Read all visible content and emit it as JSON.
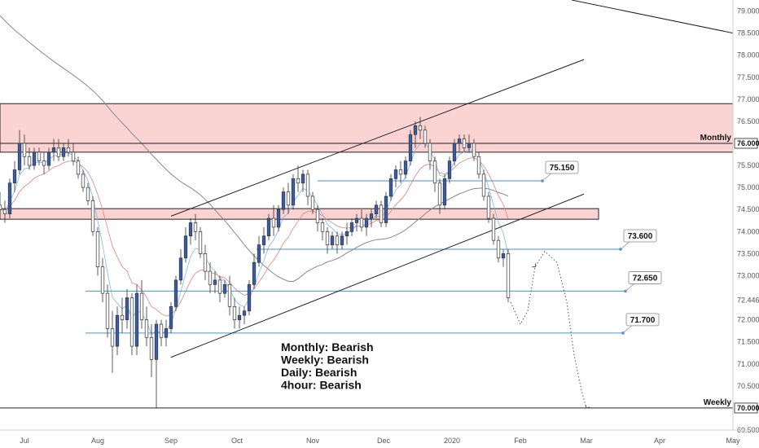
{
  "chart_data": {
    "type": "candlestick",
    "y_range": [
      69.5,
      79.25
    ],
    "x_range": [
      0,
      300
    ],
    "price_ticks": [
      "79.000",
      "78.500",
      "78.000",
      "77.500",
      "77.000",
      "76.500",
      "76.000",
      "75.500",
      "75.000",
      "74.500",
      "74.000",
      "73.500",
      "73.000",
      "72.446",
      "72.000",
      "71.500",
      "71.000",
      "70.500",
      "70.000",
      "69.500"
    ],
    "price_tick_values": [
      79.0,
      78.5,
      78.0,
      77.5,
      77.0,
      76.5,
      76.0,
      75.5,
      75.0,
      74.5,
      74.0,
      73.5,
      73.0,
      72.446,
      72.0,
      71.5,
      71.0,
      70.5,
      70.0,
      69.5
    ],
    "highlighted_ticks": {
      "76.000": "Monthly",
      "72.446": "current",
      "70.000": "Weekly"
    },
    "date_ticks": [
      {
        "label": "Jul",
        "x": 10
      },
      {
        "label": "Aug",
        "x": 40
      },
      {
        "label": "Sep",
        "x": 70
      },
      {
        "label": "Oct",
        "x": 97
      },
      {
        "label": "Nov",
        "x": 128
      },
      {
        "label": "Dec",
        "x": 157
      },
      {
        "label": "2020",
        "x": 185
      },
      {
        "label": "Feb",
        "x": 213
      },
      {
        "label": "Mar",
        "x": 240
      },
      {
        "label": "Apr",
        "x": 270
      },
      {
        "label": "May",
        "x": 300
      }
    ],
    "zones": [
      {
        "name": "Monthly",
        "low": 75.8,
        "high": 76.9,
        "x0": 0,
        "x1": 300,
        "color": "#f8b4b4"
      },
      {
        "name": "",
        "low": 74.28,
        "high": 74.52,
        "x0": 0,
        "x1": 245,
        "color": "#f8b4b4"
      }
    ],
    "levels": [
      {
        "value": 75.15,
        "x0": 130,
        "x1": 222,
        "label": "75.150",
        "color": "#4a90d9"
      },
      {
        "value": 73.6,
        "x0": 105,
        "x1": 254,
        "label": "73.600",
        "color": "#4a90d9"
      },
      {
        "value": 72.65,
        "x0": 35,
        "x1": 256,
        "label": "72.650",
        "color": "#4a90d9"
      },
      {
        "value": 71.7,
        "x0": 35,
        "x1": 255,
        "label": "71.700",
        "color": "#4a90d9"
      },
      {
        "value": 76.0,
        "x0": 0,
        "x1": 300,
        "label": "Monthly",
        "color": "#222222"
      },
      {
        "value": 70.0,
        "x0": 0,
        "x1": 300,
        "label": "Weekly",
        "color": "#222222"
      }
    ],
    "trendlines": [
      {
        "p1": [
          70,
          74.35
        ],
        "p2": [
          239,
          77.9
        ]
      },
      {
        "p1": [
          70,
          71.15
        ],
        "p2": [
          239,
          74.85
        ]
      },
      {
        "p1": [
          234,
          79.25
        ],
        "p2": [
          300,
          78.5
        ]
      }
    ],
    "candles": [
      [
        0,
        74.6,
        74.9,
        74.3,
        74.5
      ],
      [
        2,
        74.5,
        74.7,
        74.2,
        74.4
      ],
      [
        4,
        74.4,
        75.2,
        74.3,
        75.1
      ],
      [
        6,
        75.1,
        75.6,
        74.9,
        75.4
      ],
      [
        8,
        75.4,
        76.3,
        75.3,
        76.0
      ],
      [
        10,
        76.0,
        76.2,
        75.5,
        75.7
      ],
      [
        12,
        75.7,
        75.9,
        75.4,
        75.5
      ],
      [
        14,
        75.5,
        75.9,
        75.4,
        75.8
      ],
      [
        16,
        75.8,
        75.9,
        75.5,
        75.6
      ],
      [
        18,
        75.6,
        75.8,
        75.3,
        75.5
      ],
      [
        20,
        75.5,
        75.9,
        75.4,
        75.8
      ],
      [
        22,
        75.8,
        76.1,
        75.6,
        75.9
      ],
      [
        24,
        75.9,
        76.1,
        75.6,
        75.7
      ],
      [
        26,
        75.7,
        76.0,
        75.6,
        75.9
      ],
      [
        28,
        75.9,
        76.1,
        75.7,
        75.8
      ],
      [
        30,
        75.8,
        76.0,
        75.5,
        75.6
      ],
      [
        32,
        75.6,
        75.7,
        75.2,
        75.3
      ],
      [
        34,
        75.3,
        75.4,
        74.9,
        75.0
      ],
      [
        36,
        75.0,
        75.1,
        74.6,
        74.7
      ],
      [
        38,
        74.7,
        74.8,
        73.9,
        74.0
      ],
      [
        40,
        74.0,
        74.1,
        73.0,
        73.2
      ],
      [
        42,
        73.2,
        73.4,
        72.4,
        72.6
      ],
      [
        44,
        72.6,
        72.8,
        71.6,
        71.8
      ],
      [
        46,
        71.8,
        72.2,
        70.8,
        71.4
      ],
      [
        48,
        71.4,
        72.3,
        71.2,
        72.1
      ],
      [
        50,
        72.1,
        72.5,
        71.7,
        72.0
      ],
      [
        52,
        72.0,
        72.7,
        71.8,
        72.5
      ],
      [
        54,
        72.5,
        72.6,
        71.2,
        71.4
      ],
      [
        56,
        71.4,
        72.8,
        71.2,
        72.6
      ],
      [
        58,
        72.6,
        72.9,
        71.8,
        72.0
      ],
      [
        60,
        72.0,
        72.3,
        71.4,
        71.6
      ],
      [
        62,
        71.6,
        71.9,
        70.7,
        71.1
      ],
      [
        64,
        71.1,
        72.0,
        70.0,
        71.9
      ],
      [
        66,
        71.9,
        72.0,
        71.4,
        71.6
      ],
      [
        68,
        71.6,
        72.0,
        71.4,
        71.8
      ],
      [
        70,
        71.8,
        72.4,
        71.7,
        72.3
      ],
      [
        72,
        72.3,
        73.0,
        72.2,
        72.9
      ],
      [
        74,
        72.9,
        73.6,
        72.8,
        73.4
      ],
      [
        76,
        73.4,
        74.1,
        73.3,
        73.9
      ],
      [
        78,
        73.9,
        74.3,
        73.7,
        74.2
      ],
      [
        80,
        74.2,
        74.4,
        73.8,
        74.0
      ],
      [
        82,
        74.0,
        74.1,
        73.4,
        73.5
      ],
      [
        84,
        73.5,
        73.7,
        72.9,
        73.1
      ],
      [
        86,
        73.1,
        73.3,
        72.6,
        72.8
      ],
      [
        88,
        72.8,
        73.1,
        72.6,
        72.9
      ],
      [
        90,
        72.9,
        73.0,
        72.4,
        72.6
      ],
      [
        92,
        72.6,
        72.9,
        72.5,
        72.8
      ],
      [
        94,
        72.8,
        73.0,
        72.1,
        72.3
      ],
      [
        96,
        72.3,
        72.5,
        71.8,
        72.0
      ],
      [
        98,
        72.0,
        72.3,
        71.8,
        72.1
      ],
      [
        100,
        72.1,
        72.3,
        71.9,
        72.2
      ],
      [
        102,
        72.2,
        72.9,
        72.1,
        72.8
      ],
      [
        104,
        72.8,
        73.5,
        72.7,
        73.3
      ],
      [
        106,
        73.3,
        73.9,
        73.2,
        73.7
      ],
      [
        108,
        73.7,
        74.1,
        73.5,
        73.9
      ],
      [
        110,
        73.9,
        74.4,
        73.8,
        74.3
      ],
      [
        112,
        74.3,
        74.6,
        73.9,
        74.1
      ],
      [
        114,
        74.1,
        74.6,
        74.0,
        74.5
      ],
      [
        116,
        74.5,
        75.0,
        74.4,
        74.9
      ],
      [
        118,
        74.9,
        75.1,
        74.4,
        74.6
      ],
      [
        120,
        74.6,
        75.3,
        74.5,
        75.2
      ],
      [
        122,
        75.2,
        75.5,
        74.9,
        75.1
      ],
      [
        124,
        75.1,
        75.4,
        74.9,
        75.3
      ],
      [
        126,
        75.3,
        75.4,
        74.6,
        74.8
      ],
      [
        128,
        74.8,
        74.9,
        74.4,
        74.5
      ],
      [
        130,
        74.5,
        74.6,
        74.0,
        74.2
      ],
      [
        132,
        74.2,
        74.3,
        73.8,
        74.0
      ],
      [
        134,
        74.0,
        74.1,
        73.5,
        73.7
      ],
      [
        136,
        73.7,
        74.0,
        73.6,
        73.9
      ],
      [
        138,
        73.9,
        74.0,
        73.5,
        73.7
      ],
      [
        140,
        73.7,
        74.0,
        73.6,
        73.9
      ],
      [
        142,
        73.9,
        74.2,
        73.7,
        74.0
      ],
      [
        144,
        74.0,
        74.3,
        73.9,
        74.2
      ],
      [
        146,
        74.2,
        74.4,
        74.0,
        74.3
      ],
      [
        148,
        74.3,
        74.5,
        74.0,
        74.1
      ],
      [
        150,
        74.1,
        74.4,
        73.9,
        74.3
      ],
      [
        152,
        74.3,
        74.5,
        74.1,
        74.4
      ],
      [
        154,
        74.4,
        74.7,
        74.3,
        74.6
      ],
      [
        156,
        74.6,
        74.7,
        74.1,
        74.2
      ],
      [
        158,
        74.2,
        74.9,
        74.1,
        74.8
      ],
      [
        160,
        74.8,
        75.3,
        74.7,
        75.2
      ],
      [
        162,
        75.2,
        75.5,
        75.0,
        75.4
      ],
      [
        164,
        75.4,
        75.6,
        75.1,
        75.3
      ],
      [
        166,
        75.3,
        75.7,
        75.2,
        75.6
      ],
      [
        168,
        75.6,
        76.3,
        75.5,
        76.2
      ],
      [
        170,
        76.2,
        76.5,
        75.9,
        76.4
      ],
      [
        172,
        76.4,
        76.6,
        76.1,
        76.3
      ],
      [
        174,
        76.3,
        76.4,
        75.9,
        76.0
      ],
      [
        176,
        76.0,
        76.1,
        75.4,
        75.6
      ],
      [
        178,
        75.6,
        75.7,
        74.9,
        75.1
      ],
      [
        180,
        75.1,
        75.2,
        74.4,
        74.6
      ],
      [
        182,
        74.6,
        75.3,
        74.5,
        75.2
      ],
      [
        184,
        75.2,
        75.7,
        75.1,
        75.6
      ],
      [
        186,
        75.6,
        76.1,
        75.5,
        76.0
      ],
      [
        188,
        76.0,
        76.2,
        75.8,
        76.1
      ],
      [
        190,
        76.1,
        76.2,
        75.8,
        75.9
      ],
      [
        192,
        75.9,
        76.2,
        75.8,
        76.0
      ],
      [
        194,
        76.0,
        76.1,
        75.6,
        75.7
      ],
      [
        196,
        75.7,
        75.8,
        75.2,
        75.3
      ],
      [
        198,
        75.3,
        75.4,
        74.7,
        74.8
      ],
      [
        200,
        74.8,
        74.9,
        74.2,
        74.3
      ],
      [
        202,
        74.3,
        74.4,
        73.7,
        73.8
      ],
      [
        204,
        73.8,
        73.9,
        73.3,
        73.4
      ],
      [
        206,
        73.4,
        73.6,
        73.2,
        73.5
      ],
      [
        208,
        73.5,
        73.6,
        72.4,
        72.5
      ]
    ],
    "annotations": [
      "Monthly: Bearish",
      "Weekly: Bearish",
      "Daily: Bearish",
      "4hour: Bearish"
    ],
    "colors": {
      "up": "#3a5da8",
      "down": "#ffffff",
      "wick": "#333333",
      "zone_fill": "#fbd3d3",
      "zone_border": "#222222",
      "level": "#5aa0e0",
      "trend": "#222222",
      "ema_red": "#e08080",
      "ema_blue": "#7fb6e8",
      "sma_grey": "#888888"
    }
  }
}
